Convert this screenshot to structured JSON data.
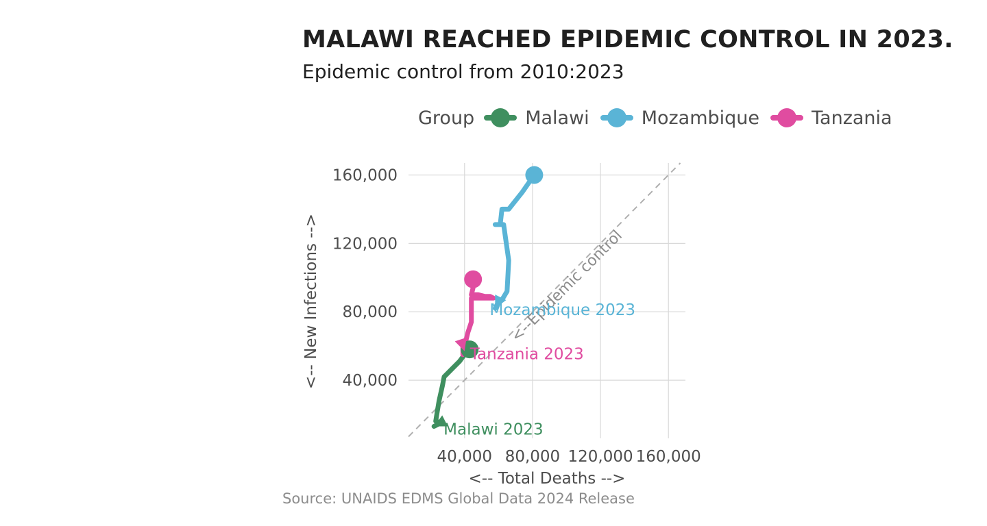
{
  "title": "MALAWI REACHED EPIDEMIC CONTROL IN 2023.",
  "subtitle": "Epidemic control from 2010:2023",
  "source": "Source: UNAIDS EDMS Global Data 2024 Release",
  "legend": {
    "title": "Group",
    "items": [
      {
        "label": "Malawi",
        "color": "#3f8f5f"
      },
      {
        "label": "Mozambique",
        "color": "#5ab4d6"
      },
      {
        "label": "Tanzania",
        "color": "#e04ca0"
      }
    ]
  },
  "chart_data": {
    "type": "line",
    "xlabel": "<-- Total Deaths -->",
    "ylabel": "<-- New Infections -->",
    "xlim": [
      7000,
      170000
    ],
    "ylim": [
      6000,
      167000
    ],
    "x_ticks": [
      40000,
      80000,
      120000,
      160000
    ],
    "y_ticks": [
      40000,
      80000,
      120000,
      160000
    ],
    "x_tick_labels": [
      "40,000",
      "80,000",
      "120,000",
      "160,000"
    ],
    "y_tick_labels": [
      "40,000",
      "80,000",
      "120,000",
      "160,000"
    ],
    "grid": true,
    "legend_position": "top",
    "reference_line": {
      "label": "<--Epidemic control",
      "slope": 1,
      "intercept": 0,
      "style": "dashed",
      "color": "#b0b0b0"
    },
    "series": [
      {
        "name": "Malawi",
        "color": "#3f8f5f",
        "points": [
          [
            43000,
            58000
          ],
          [
            40000,
            55000
          ],
          [
            37000,
            51000
          ],
          [
            33000,
            47000
          ],
          [
            28000,
            42000
          ],
          [
            27000,
            37000
          ],
          [
            25000,
            28000
          ],
          [
            24000,
            22000
          ],
          [
            23000,
            16000
          ],
          [
            26000,
            15000
          ],
          [
            22000,
            13000
          ]
        ],
        "end_label": "Malawi 2023"
      },
      {
        "name": "Mozambique",
        "color": "#5ab4d6",
        "points": [
          [
            81000,
            160000
          ],
          [
            74000,
            150000
          ],
          [
            66000,
            140000
          ],
          [
            62000,
            140000
          ],
          [
            61000,
            131000
          ],
          [
            58000,
            131000
          ],
          [
            63000,
            131000
          ],
          [
            66000,
            110000
          ],
          [
            65000,
            92000
          ],
          [
            62000,
            87000
          ],
          [
            59000,
            84000
          ],
          [
            58000,
            82000
          ]
        ],
        "end_label": "Mozambique 2023"
      },
      {
        "name": "Tanzania",
        "color": "#e04ca0",
        "points": [
          [
            45000,
            99000
          ],
          [
            44000,
            96000
          ],
          [
            45000,
            94000
          ],
          [
            44000,
            90000
          ],
          [
            48000,
            90000
          ],
          [
            52000,
            89000
          ],
          [
            55000,
            89000
          ],
          [
            57000,
            88000
          ],
          [
            44000,
            88000
          ],
          [
            44000,
            80000
          ],
          [
            44000,
            74000
          ],
          [
            42000,
            68000
          ],
          [
            41000,
            64000
          ],
          [
            40000,
            59000
          ],
          [
            39000,
            55000
          ],
          [
            39000,
            60000
          ],
          [
            40000,
            57000
          ]
        ],
        "end_label": "Tanzania 2023"
      }
    ]
  }
}
